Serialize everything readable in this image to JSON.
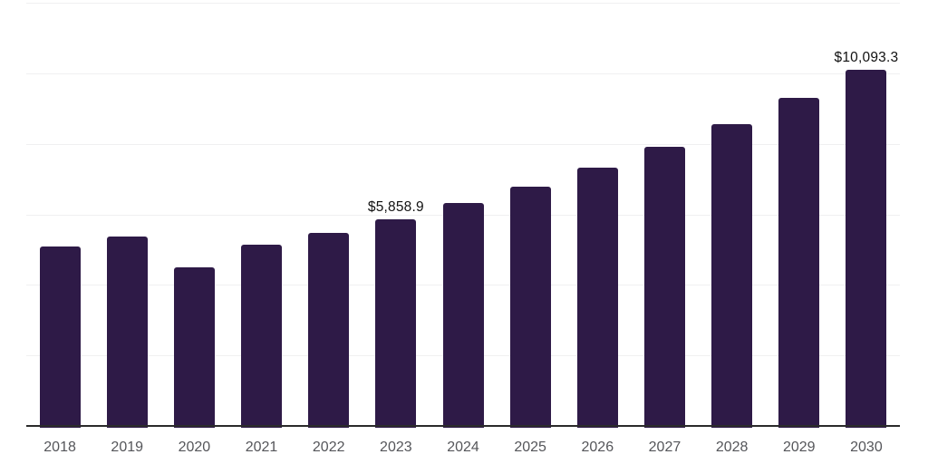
{
  "chart_data": {
    "type": "bar",
    "title": "",
    "xlabel": "",
    "ylabel": "",
    "categories": [
      "2018",
      "2019",
      "2020",
      "2021",
      "2022",
      "2023",
      "2024",
      "2025",
      "2026",
      "2027",
      "2028",
      "2029",
      "2030"
    ],
    "values": [
      5090,
      5360,
      4490,
      5150,
      5480,
      5858.9,
      6320,
      6790,
      7330,
      7920,
      8560,
      9300,
      10093.3
    ],
    "point_labels": {
      "2023": "$5,858.9",
      "2030": "$10,093.3"
    },
    "ylim": [
      0,
      12000
    ],
    "grid_interval": 2000,
    "grid": "horizontal-only",
    "legend": "none",
    "colors": {
      "bar": "#2e1a47",
      "axis_line": "#2b2b2b",
      "gridline": "#f0f0f1",
      "tick_label": "#55565a",
      "data_label": "#111111",
      "background": "#ffffff"
    }
  }
}
